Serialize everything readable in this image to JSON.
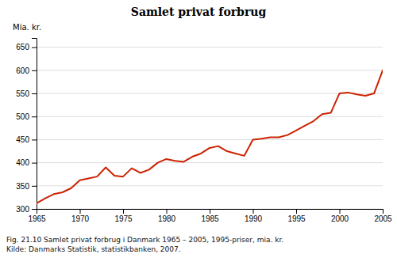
{
  "chart_data": {
    "type": "line",
    "title": "Samlet privat forbrug",
    "y_label": "Mia. kr.",
    "annotations": [
      "Fig. 21.10 Samlet privat forbrug i Danmark 1965 – 2005, 1995-priser, mia. kr.",
      "Kilde: Danmarks Statistik, statistikbanken, 2007."
    ],
    "color": "#cc2200",
    "xlim": [
      1965,
      2005
    ],
    "ylim": [
      300,
      670
    ],
    "xticks": [
      1965,
      1970,
      1975,
      1980,
      1985,
      1990,
      1995,
      2000,
      2005
    ],
    "yticks": [
      300,
      350,
      400,
      450,
      500,
      550,
      600,
      650
    ],
    "grid": true,
    "x": [
      1965,
      1966,
      1967,
      1968,
      1969,
      1970,
      1971,
      1972,
      1973,
      1974,
      1975,
      1976,
      1977,
      1978,
      1979,
      1980,
      1981,
      1982,
      1983,
      1984,
      1985,
      1986,
      1987,
      1988,
      1989,
      1990,
      1991,
      1992,
      1993,
      1994,
      1995,
      1996,
      1997,
      1998,
      1999,
      2000,
      2001,
      2002,
      2003,
      2004,
      2005
    ],
    "values": [
      312,
      323,
      332,
      336,
      345,
      362,
      366,
      370,
      390,
      372,
      370,
      388,
      378,
      385,
      400,
      408,
      404,
      402,
      413,
      420,
      432,
      436,
      425,
      420,
      415,
      450,
      452,
      455,
      455,
      460,
      470,
      480,
      490,
      505,
      508,
      550,
      552,
      548,
      545,
      550,
      600
    ]
  }
}
